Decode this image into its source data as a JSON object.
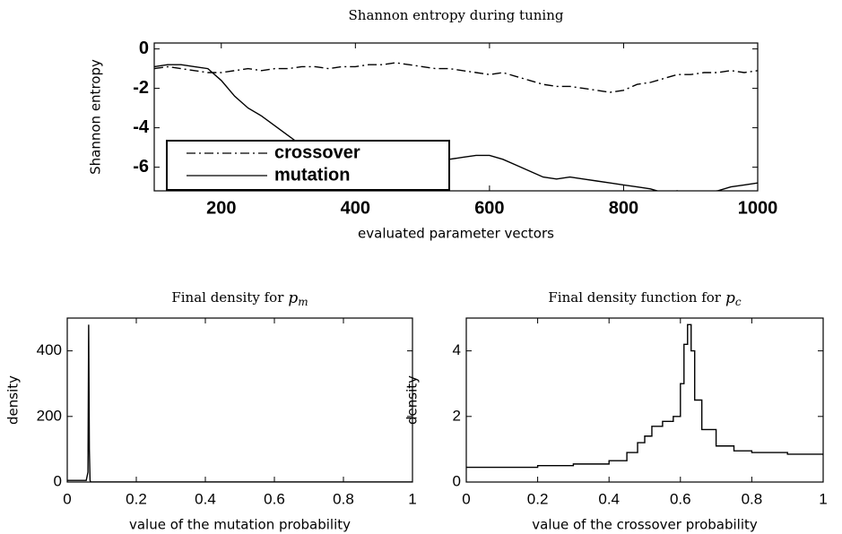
{
  "chart_data": [
    {
      "type": "line",
      "title": "Shannon entropy during tuning",
      "xlabel": "evaluated parameter vectors",
      "ylabel": "Shannon entropy",
      "x": [
        100,
        120,
        140,
        160,
        180,
        200,
        220,
        240,
        260,
        280,
        300,
        320,
        340,
        360,
        380,
        400,
        420,
        440,
        460,
        480,
        500,
        520,
        540,
        560,
        580,
        600,
        620,
        640,
        660,
        680,
        700,
        720,
        740,
        760,
        780,
        800,
        820,
        840,
        860,
        880,
        900,
        920,
        940,
        960,
        980,
        1000
      ],
      "series": [
        {
          "name": "crossover",
          "color": "#000000",
          "dash": "dash-dot",
          "values": [
            -1.0,
            -0.9,
            -1.0,
            -1.1,
            -1.2,
            -1.2,
            -1.1,
            -1.0,
            -1.1,
            -1.0,
            -1.0,
            -0.9,
            -0.9,
            -1.0,
            -0.9,
            -0.9,
            -0.8,
            -0.8,
            -0.7,
            -0.8,
            -0.9,
            -1.0,
            -1.0,
            -1.1,
            -1.2,
            -1.3,
            -1.2,
            -1.4,
            -1.6,
            -1.8,
            -1.9,
            -1.9,
            -2.0,
            -2.1,
            -2.2,
            -2.1,
            -1.8,
            -1.7,
            -1.5,
            -1.3,
            -1.3,
            -1.2,
            -1.2,
            -1.1,
            -1.2,
            -1.1
          ]
        },
        {
          "name": "mutation",
          "color": "#000000",
          "dash": "solid",
          "values": [
            -0.9,
            -0.8,
            -0.8,
            -0.9,
            -1.0,
            -1.6,
            -2.4,
            -3.0,
            -3.4,
            -3.9,
            -4.4,
            -4.9,
            -5.1,
            -5.3,
            -5.5,
            -5.6,
            -5.7,
            -5.8,
            -5.9,
            -5.8,
            -5.8,
            -5.7,
            -5.6,
            -5.5,
            -5.4,
            -5.4,
            -5.6,
            -5.9,
            -6.2,
            -6.5,
            -6.6,
            -6.5,
            -6.6,
            -6.7,
            -6.8,
            -6.9,
            -7.0,
            -7.1,
            -7.3,
            -7.2,
            -7.4,
            -7.3,
            -7.2,
            -7.0,
            -6.9,
            -6.8
          ]
        }
      ],
      "xlim": [
        100,
        1000
      ],
      "xticks": [
        200,
        400,
        600,
        800,
        1000
      ],
      "ylim": [
        -7.2,
        0.3
      ],
      "yticks": [
        0,
        -2,
        -4,
        -6
      ],
      "legend": "lower left"
    },
    {
      "type": "line",
      "title": "Final density for",
      "title_symbol": "p",
      "title_subscript": "m",
      "xlabel": "value of the mutation probability",
      "ylabel": "density",
      "x": [
        0,
        0.055,
        0.06,
        0.062,
        0.064,
        0.066,
        0.068,
        0.07,
        1
      ],
      "series": [
        {
          "color": "#000000",
          "dash": "solid",
          "values": [
            5,
            5,
            30,
            480,
            100,
            5,
            0,
            0,
            0
          ]
        }
      ],
      "xlim": [
        0,
        1
      ],
      "xticks": [
        0,
        0.2,
        0.4,
        0.6,
        0.8,
        1
      ],
      "ylim": [
        0,
        500
      ],
      "yticks": [
        0,
        200,
        400
      ]
    },
    {
      "type": "line",
      "title": "Final density function for",
      "title_symbol": "p",
      "title_subscript": "c",
      "xlabel": "value of the crossover probability",
      "ylabel": "density",
      "x": [
        0,
        0.2,
        0.3,
        0.4,
        0.45,
        0.48,
        0.5,
        0.52,
        0.55,
        0.58,
        0.6,
        0.61,
        0.62,
        0.63,
        0.64,
        0.66,
        0.7,
        0.75,
        0.8,
        0.9,
        1
      ],
      "series": [
        {
          "color": "#000000",
          "dash": "step",
          "values": [
            0.45,
            0.5,
            0.55,
            0.65,
            0.9,
            1.2,
            1.4,
            1.7,
            1.85,
            2.0,
            3.0,
            4.2,
            4.8,
            4.0,
            2.5,
            1.6,
            1.1,
            0.95,
            0.9,
            0.85,
            0.82
          ]
        }
      ],
      "xlim": [
        0,
        1
      ],
      "xticks": [
        0,
        0.2,
        0.4,
        0.6,
        0.8,
        1
      ],
      "ylim": [
        0,
        5
      ],
      "yticks": [
        0,
        2,
        4
      ]
    }
  ]
}
